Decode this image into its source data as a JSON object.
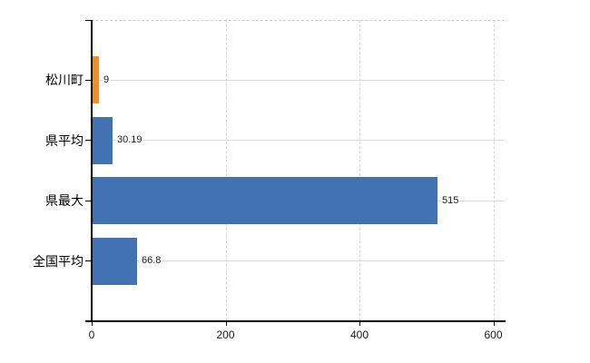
{
  "chart_data": {
    "type": "bar",
    "orientation": "horizontal",
    "title": "",
    "xlabel": "",
    "ylabel": "",
    "categories": [
      "松川町",
      "県平均",
      "県最大",
      "全国平均"
    ],
    "values": [
      9,
      30.19,
      515,
      66.8
    ],
    "value_labels": [
      "9",
      "30.19",
      "515",
      "66.8"
    ],
    "bar_colors": [
      "#ed8f2f",
      "#4372b2",
      "#4372b2",
      "#4372b2"
    ],
    "xlim": [
      0,
      600
    ],
    "x_ticks": [
      0,
      200,
      400,
      600
    ],
    "x_tick_labels": [
      "0",
      "200",
      "400",
      "600"
    ],
    "grid": true,
    "legend": false
  },
  "colors": {
    "bar_highlight": "#ed8f2f",
    "bar_default": "#4372b2",
    "grid": "#d9d9d9",
    "axis": "#000000",
    "text": "#1a1a1a",
    "background": "#ffffff"
  }
}
